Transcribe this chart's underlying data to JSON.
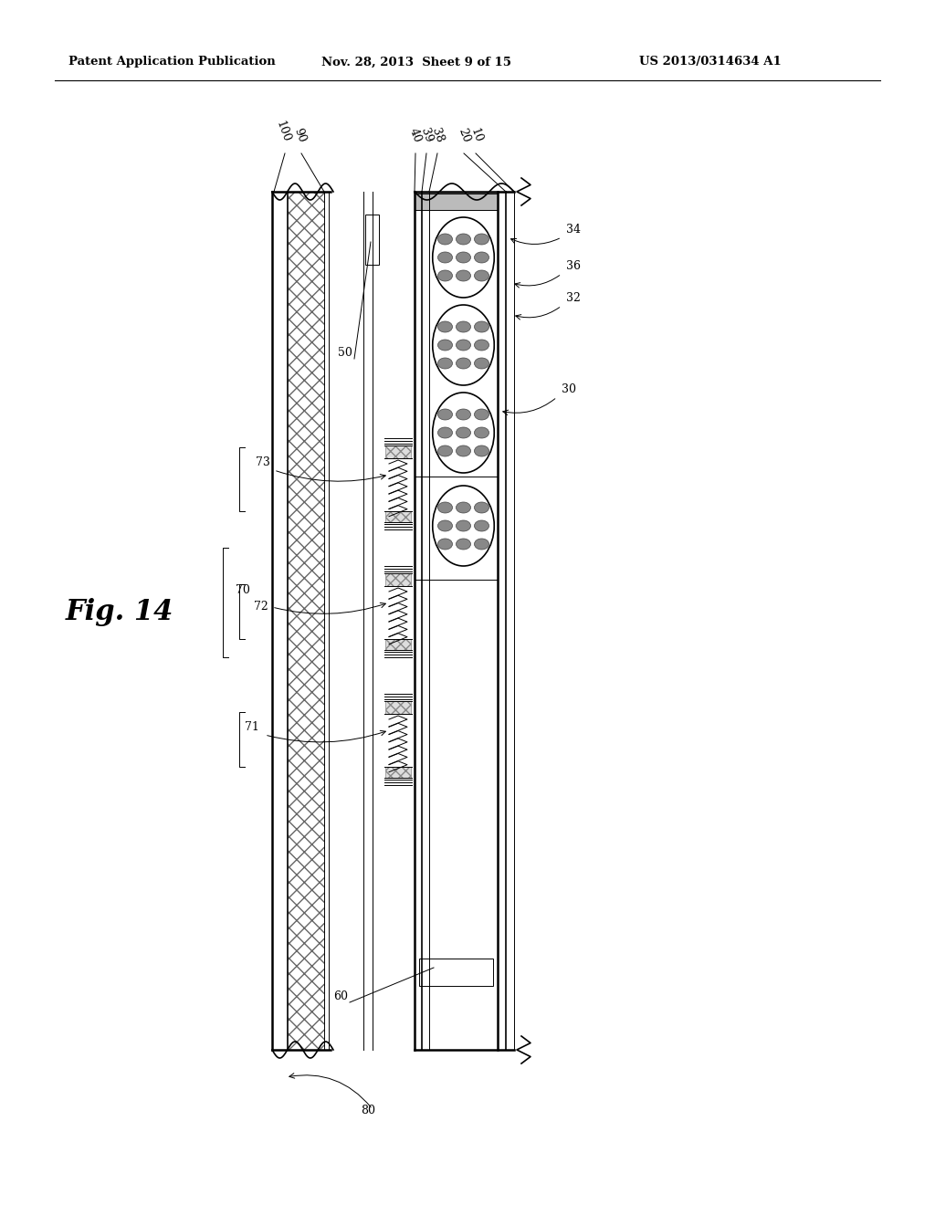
{
  "header_left": "Patent Application Publication",
  "header_mid": "Nov. 28, 2013  Sheet 9 of 15",
  "header_right": "US 2013/0314634 A1",
  "fig_label": "Fig. 14",
  "bg_color": "#ffffff",
  "line_color": "#000000",
  "lw_thick": 1.8,
  "lw_med": 1.2,
  "lw_thin": 0.7,
  "label_fs": 9
}
